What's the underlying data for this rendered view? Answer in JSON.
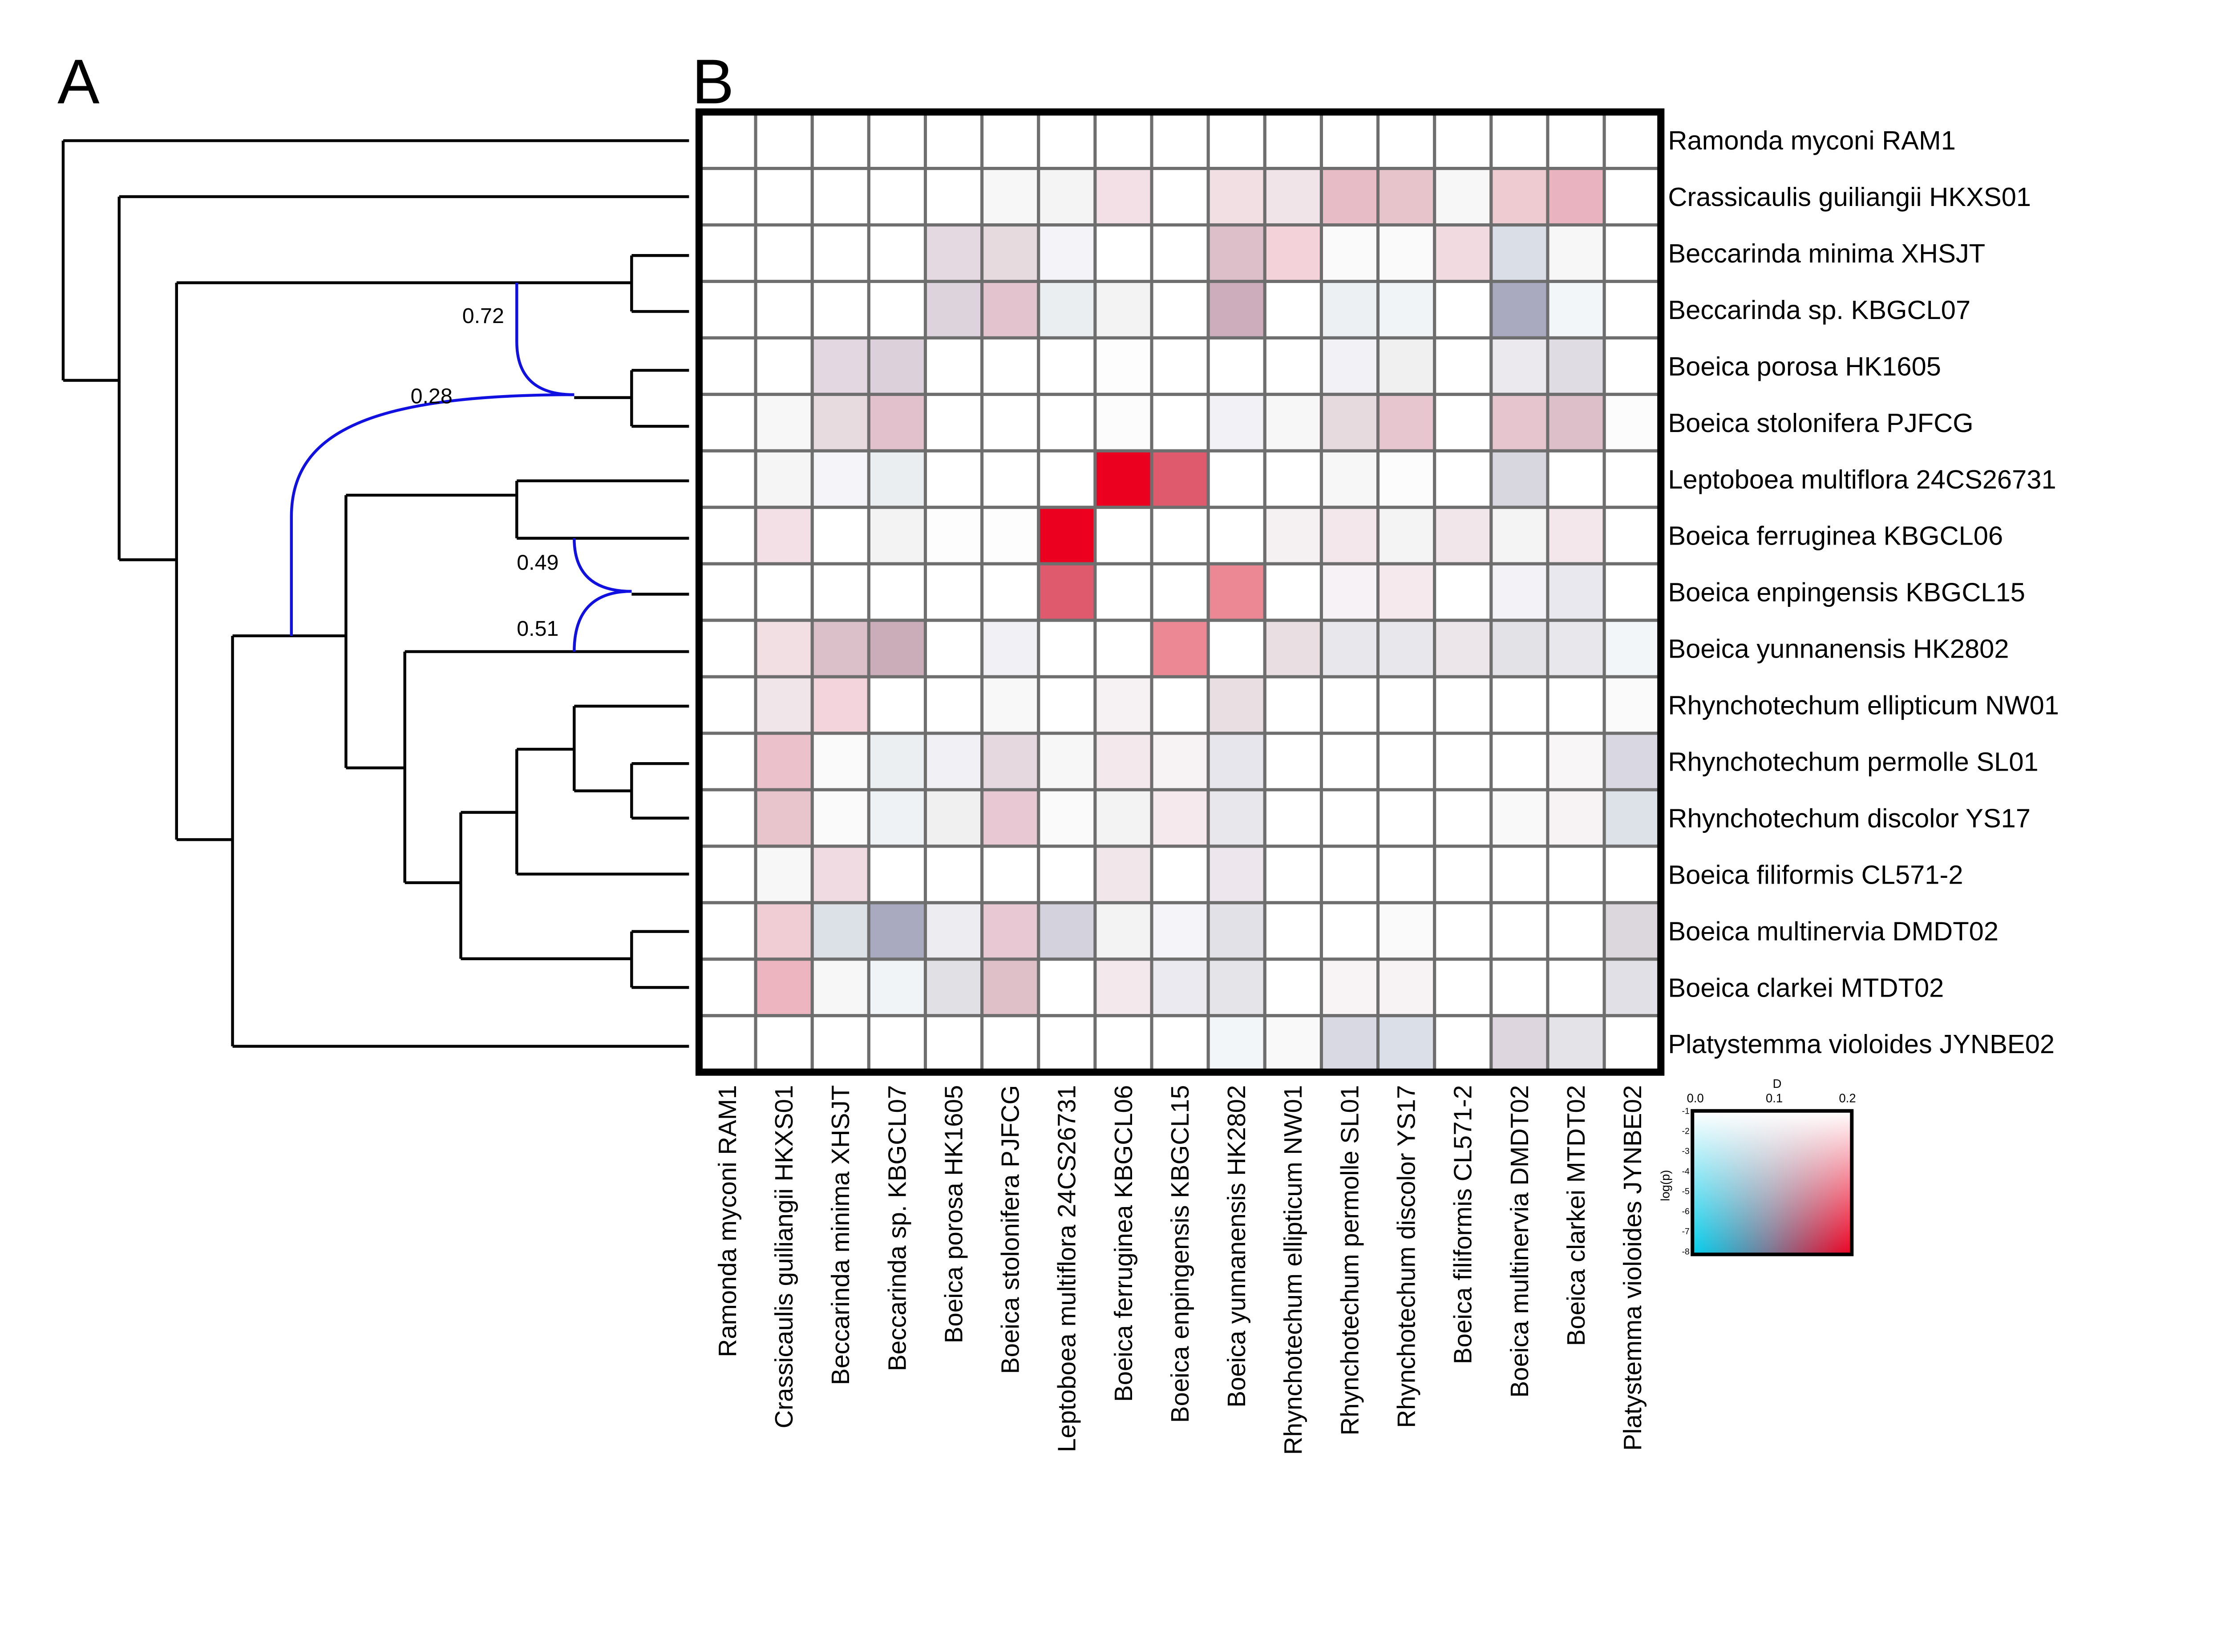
{
  "panels": {
    "a": "A",
    "b": "B"
  },
  "tree": {
    "hybrid_proportions": [
      "0.72",
      "0.28",
      "0.49",
      "0.51"
    ],
    "hybrid_color": "#1010e0"
  },
  "chart_data": {
    "type": "heatmap",
    "rows": [
      "Ramonda myconi RAM1",
      "Crassicaulis guiliangii HKXS01",
      "Beccarinda minima XHSJT",
      "Beccarinda sp. KBGCL07",
      "Boeica porosa HK1605",
      "Boeica stolonifera PJFCG",
      "Leptoboea multiflora 24CS26731",
      "Boeica ferruginea KBGCL06",
      "Boeica enpingensis KBGCL15",
      "Boeica yunnanensis HK2802",
      "Rhynchotechum ellipticum NW01",
      "Rhynchotechum permolle SL01",
      "Rhynchotechum discolor YS17",
      "Boeica filiformis CL571-2",
      "Boeica multinervia DMDT02",
      "Boeica clarkei MTDT02",
      "Platystemma violoides JYNBE02"
    ],
    "columns": [
      "Ramonda myconi RAM1",
      "Crassicaulis guiliangii  HKXS01",
      "Beccarinda minima XHSJT",
      "Beccarinda sp. KBGCL07",
      "Boeica porosa HK1605",
      "Boeica stolonifera PJFCG",
      "Leptoboea multiflora 24CS26731",
      "Boeica ferruginea KBGCL06",
      "Boeica enpingensis KBGCL15",
      "Boeica yunnanensis HK2802",
      "Rhynchotechum ellipticum NW01",
      "Rhynchotechum permolle SL01",
      "Rhynchotechum discolor YS17",
      "Boeica filiformis CL571-2",
      "Boeica multinervia DMDT02",
      "Boeica clarkei MTDT02",
      "Platystemma violoides JYNBE02"
    ],
    "cell_colors": [
      [
        "#ffffff",
        "#ffffff",
        "#ffffff",
        "#ffffff",
        "#ffffff",
        "#ffffff",
        "#ffffff",
        "#ffffff",
        "#ffffff",
        "#ffffff",
        "#ffffff",
        "#ffffff",
        "#ffffff",
        "#ffffff",
        "#ffffff",
        "#ffffff",
        "#ffffff"
      ],
      [
        "#ffffff",
        "#ffffff",
        "#ffffff",
        "#ffffff",
        "#ffffff",
        "#f7f7f7",
        "#f4f4f5",
        "#f3e0e6",
        "#ffffff",
        "#f1dfe4",
        "#f0e4e8",
        "#e8bcc6",
        "#e7c4cb",
        "#f7f7f7",
        "#eecad1",
        "#e9b3bf",
        "#ffffff"
      ],
      [
        "#ffffff",
        "#ffffff",
        "#ffffff",
        "#ffffff",
        "#e4d9e0",
        "#e7dade",
        "#f4f4f8",
        "#ffffff",
        "#ffffff",
        "#dcbfc9",
        "#f3d2d9",
        "#fafafa",
        "#fafafa",
        "#f1dbe1",
        "#dadee6",
        "#f7f7f7",
        "#ffffff"
      ],
      [
        "#ffffff",
        "#ffffff",
        "#ffffff",
        "#ffffff",
        "#ddd3dc",
        "#e3c3cd",
        "#ebeef1",
        "#f3f3f3",
        "#ffffff",
        "#cdadbb",
        "#ffffff",
        "#ecf0f3",
        "#f1f4f6",
        "#ffffff",
        "#a9a9bf",
        "#f3f6f8",
        "#ffffff"
      ],
      [
        "#ffffff",
        "#ffffff",
        "#e3d8e1",
        "#dcd0da",
        "#ffffff",
        "#ffffff",
        "#ffffff",
        "#fdfdfd",
        "#ffffff",
        "#ffffff",
        "#ffffff",
        "#f2f2f6",
        "#f0f0f0",
        "#ffffff",
        "#ebe9ee",
        "#dfdde3",
        "#ffffff"
      ],
      [
        "#ffffff",
        "#f7f7f7",
        "#e8dbe0",
        "#e2c1cc",
        "#ffffff",
        "#ffffff",
        "#ffffff",
        "#fcfcfc",
        "#ffffff",
        "#f2f2f6",
        "#f7f7f7",
        "#e6dade",
        "#e7c6d0",
        "#ffffff",
        "#e6c5cf",
        "#dcbfc8",
        "#fcfcfc"
      ],
      [
        "#ffffff",
        "#f5f5f5",
        "#f5f5f9",
        "#ebeef1",
        "#ffffff",
        "#ffffff",
        "#ffffff",
        "#ec0020",
        "#e05a6e",
        "#ffffff",
        "#ffffff",
        "#f7f7f7",
        "#fcfcfc",
        "#ffffff",
        "#d8d7e0",
        "#ffffff",
        "#ffffff"
      ],
      [
        "#ffffff",
        "#f3e0e6",
        "#ffffff",
        "#f3f3f3",
        "#fdfdfd",
        "#fdfdfd",
        "#ec0020",
        "#ffffff",
        "#ffffff",
        "#ffffff",
        "#f5f0f2",
        "#f3e7eb",
        "#f4f4f4",
        "#f1e6ea",
        "#f4f4f4",
        "#f3e7eb",
        "#ffffff"
      ],
      [
        "#ffffff",
        "#ffffff",
        "#ffffff",
        "#ffffff",
        "#ffffff",
        "#ffffff",
        "#e05a6e",
        "#ffffff",
        "#ffffff",
        "#ec8894",
        "#ffffff",
        "#f6f2f5",
        "#f5e9ed",
        "#ffffff",
        "#f3f3f7",
        "#e9e8ee",
        "#ffffff"
      ],
      [
        "#ffffff",
        "#f1dfe4",
        "#dbc0c9",
        "#cbadba",
        "#ffffff",
        "#f1f1f5",
        "#ffffff",
        "#ffffff",
        "#ec8894",
        "#ffffff",
        "#e9dfe2",
        "#e8e8ec",
        "#e8e8ec",
        "#ece6ea",
        "#e3e2e6",
        "#e8e7eb",
        "#f3f6f8"
      ],
      [
        "#ffffff",
        "#f0e5e9",
        "#f3d4dc",
        "#ffffff",
        "#ffffff",
        "#f8f8f8",
        "#ffffff",
        "#f6f1f3",
        "#ffffff",
        "#e9dfe3",
        "#ffffff",
        "#ffffff",
        "#ffffff",
        "#ffffff",
        "#ffffff",
        "#ffffff",
        "#fafafa"
      ],
      [
        "#ffffff",
        "#ebc1cb",
        "#fafafa",
        "#ebeff2",
        "#f1f1f5",
        "#e5d8de",
        "#f7f7f7",
        "#f3e8ec",
        "#f7f2f4",
        "#e7e6ec",
        "#ffffff",
        "#ffffff",
        "#ffffff",
        "#ffffff",
        "#ffffff",
        "#f9f6f7",
        "#d9d8e2"
      ],
      [
        "#ffffff",
        "#e8c5cc",
        "#fafafa",
        "#eef2f5",
        "#f0f0f0",
        "#e8c9d3",
        "#fafafa",
        "#f3f3f3",
        "#f5e9ed",
        "#e8e8ec",
        "#ffffff",
        "#ffffff",
        "#ffffff",
        "#ffffff",
        "#f9f9f9",
        "#f7f2f4",
        "#dde1e8"
      ],
      [
        "#ffffff",
        "#f7f7f7",
        "#f0dbe2",
        "#ffffff",
        "#ffffff",
        "#ffffff",
        "#ffffff",
        "#f1e6ea",
        "#ffffff",
        "#ede6ec",
        "#ffffff",
        "#ffffff",
        "#ffffff",
        "#ffffff",
        "#ffffff",
        "#ffffff",
        "#ffffff"
      ],
      [
        "#ffffff",
        "#f0ccd5",
        "#dce0e7",
        "#a9a9bf",
        "#ededf1",
        "#e8c8d2",
        "#d4d3dd",
        "#f3f3f3",
        "#f5f5f9",
        "#e2e1e7",
        "#ffffff",
        "#ffffff",
        "#fafafa",
        "#ffffff",
        "#ffffff",
        "#ffffff",
        "#dcd6dd"
      ],
      [
        "#ffffff",
        "#ecb5c0",
        "#f7f7f7",
        "#f0f4f6",
        "#e1e1e5",
        "#dfc0c9",
        "#ffffff",
        "#f3e8ec",
        "#ebeaf0",
        "#e4e4e9",
        "#ffffff",
        "#f8f4f6",
        "#f7f2f4",
        "#ffffff",
        "#ffffff",
        "#ffffff",
        "#e0e0e6"
      ],
      [
        "#ffffff",
        "#ffffff",
        "#ffffff",
        "#ffffff",
        "#ffffff",
        "#ffffff",
        "#ffffff",
        "#ffffff",
        "#ffffff",
        "#f3f6f8",
        "#f9f9f9",
        "#d9d9e4",
        "#dbdfe8",
        "#ffffff",
        "#ddd6de",
        "#e3e3e8",
        "#ffffff"
      ]
    ],
    "legend": {
      "x_title": "D",
      "x_ticks": [
        "0.0",
        "0.1",
        "0.2"
      ],
      "x_range": [
        0.0,
        0.2
      ],
      "y_title": "log(p)",
      "y_ticks": [
        "-1",
        "-2",
        "-3",
        "-4",
        "-5",
        "-6",
        "-7",
        "-8"
      ],
      "y_range": [
        -1,
        -8
      ],
      "colors": {
        "low_D_low_p": "#00d0ee",
        "high_D_low_p": "#ee0020",
        "high_p": "#ffffff"
      }
    }
  }
}
